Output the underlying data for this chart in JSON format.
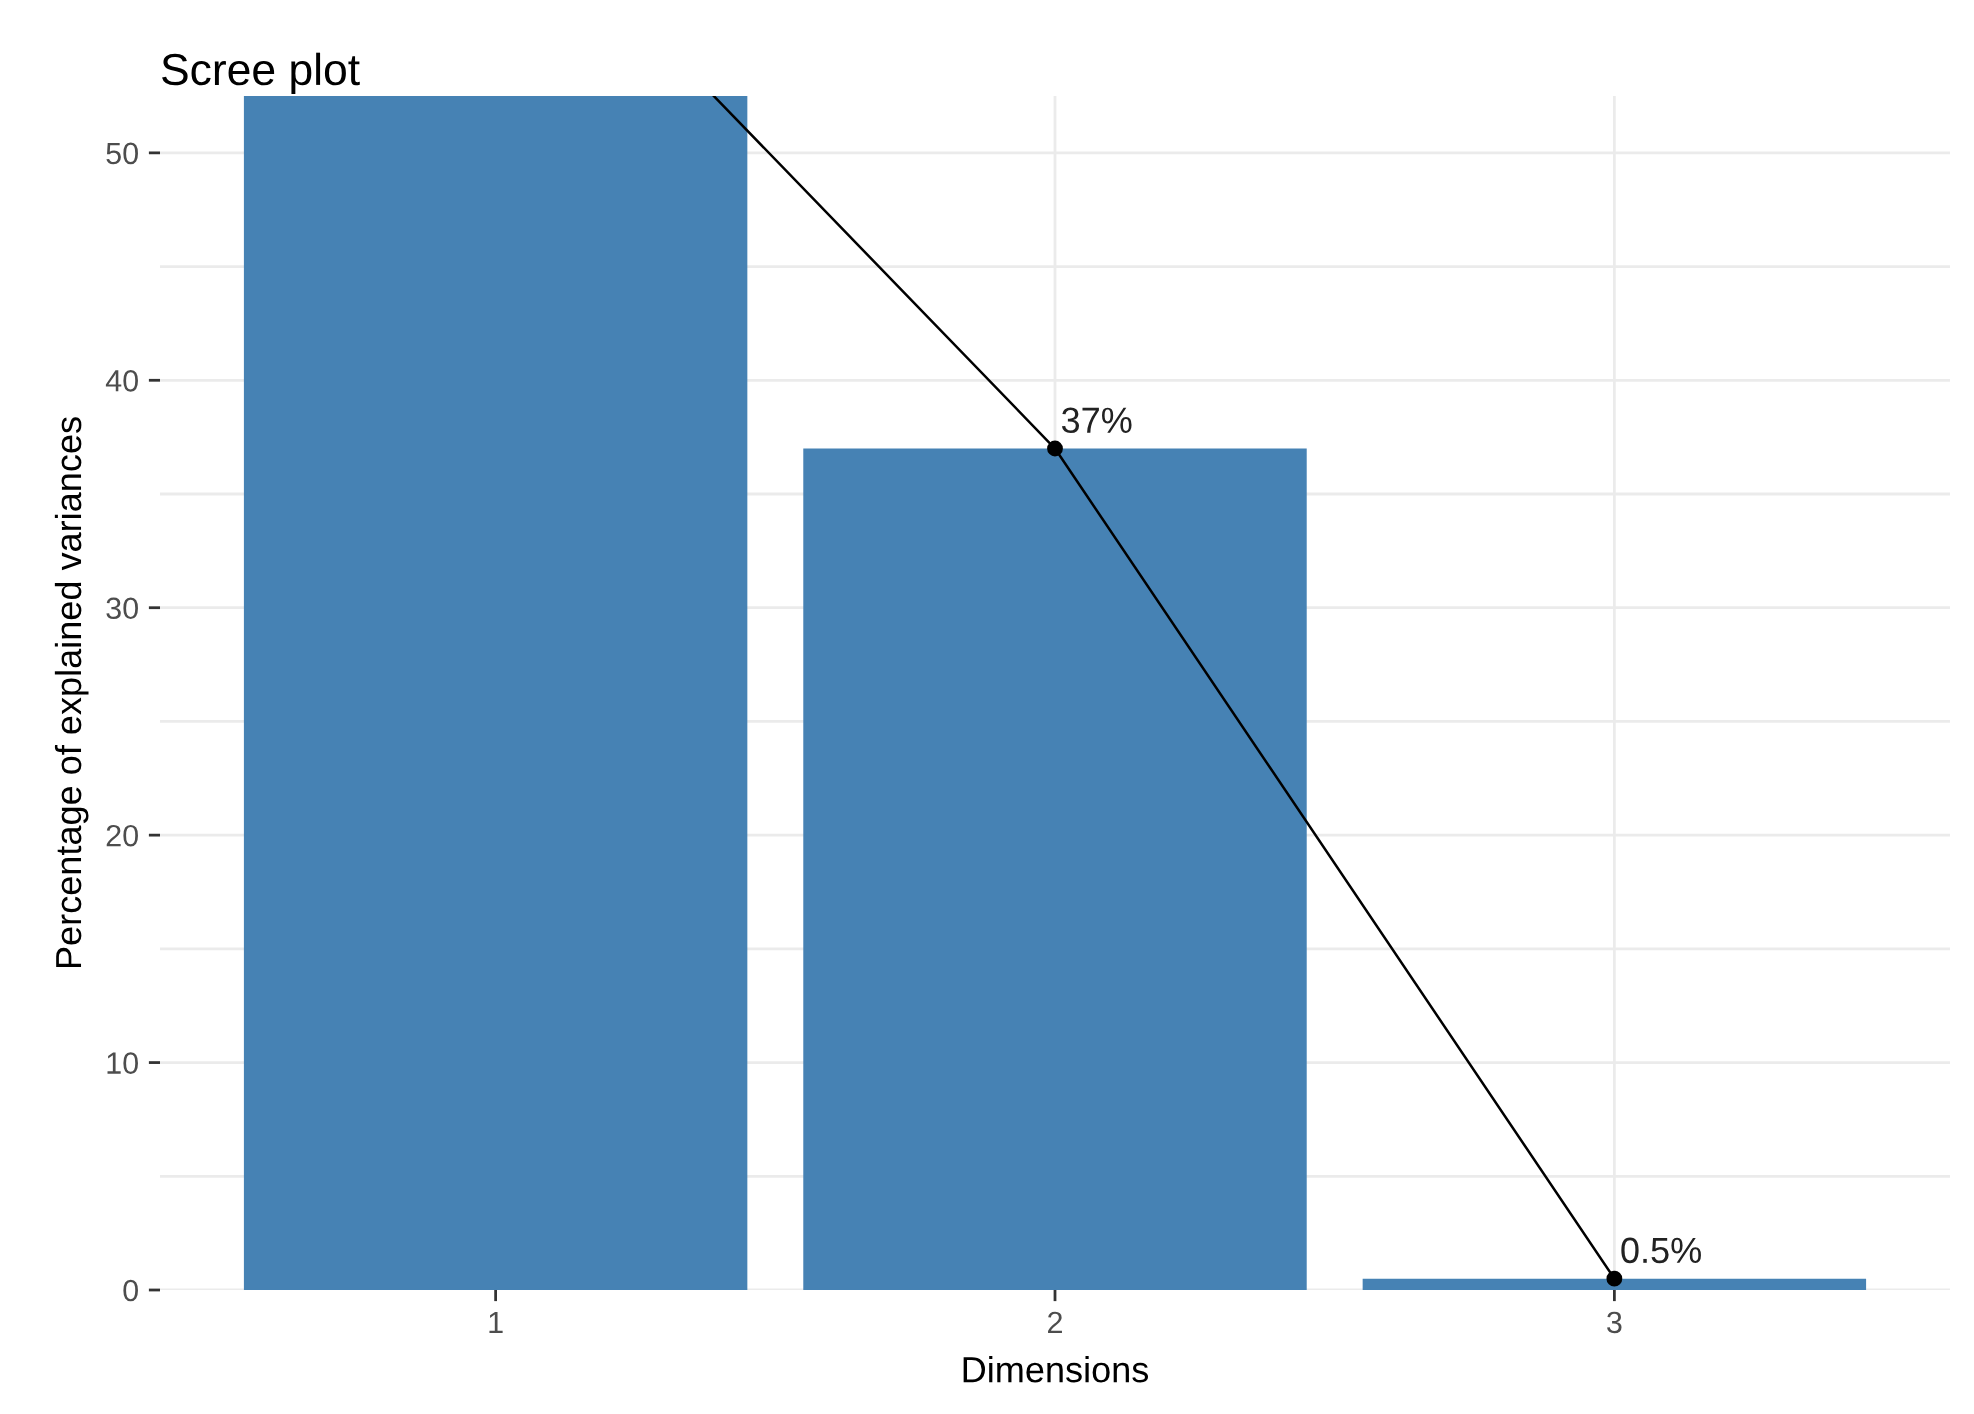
{
  "chart_data": {
    "type": "bar",
    "title": "Scree plot",
    "xlabel": "Dimensions",
    "ylabel": "Percentage of explained variances",
    "x": [
      1,
      2,
      3
    ],
    "xlim": [
      0.4,
      3.6
    ],
    "xticks": [
      1,
      2,
      3
    ],
    "ylim": [
      0,
      52.5
    ],
    "yticks": [
      0,
      {
        "value": 5,
        "label": null
      },
      10,
      {
        "value": 15,
        "label": null
      },
      20,
      {
        "value": 25,
        "label": null
      },
      30,
      {
        "value": 35,
        "label": null
      },
      40,
      {
        "value": 45,
        "label": null
      },
      50
    ],
    "grid": true,
    "series": [
      {
        "color": "#4682b4",
        "values": [
          52.5,
          37,
          0.5
        ]
      },
      {
        "type": "line",
        "color": "#000000",
        "x": [
          1.39,
          2,
          3
        ],
        "values": [
          52.5,
          37,
          0.5
        ],
        "marker": "none"
      },
      {
        "type": "scatter",
        "color": "#000000",
        "x": [
          2,
          3
        ],
        "values": [
          37,
          0.5
        ],
        "marker": "circle",
        "value_labels": [
          "37%",
          "0.5%"
        ]
      }
    ]
  }
}
